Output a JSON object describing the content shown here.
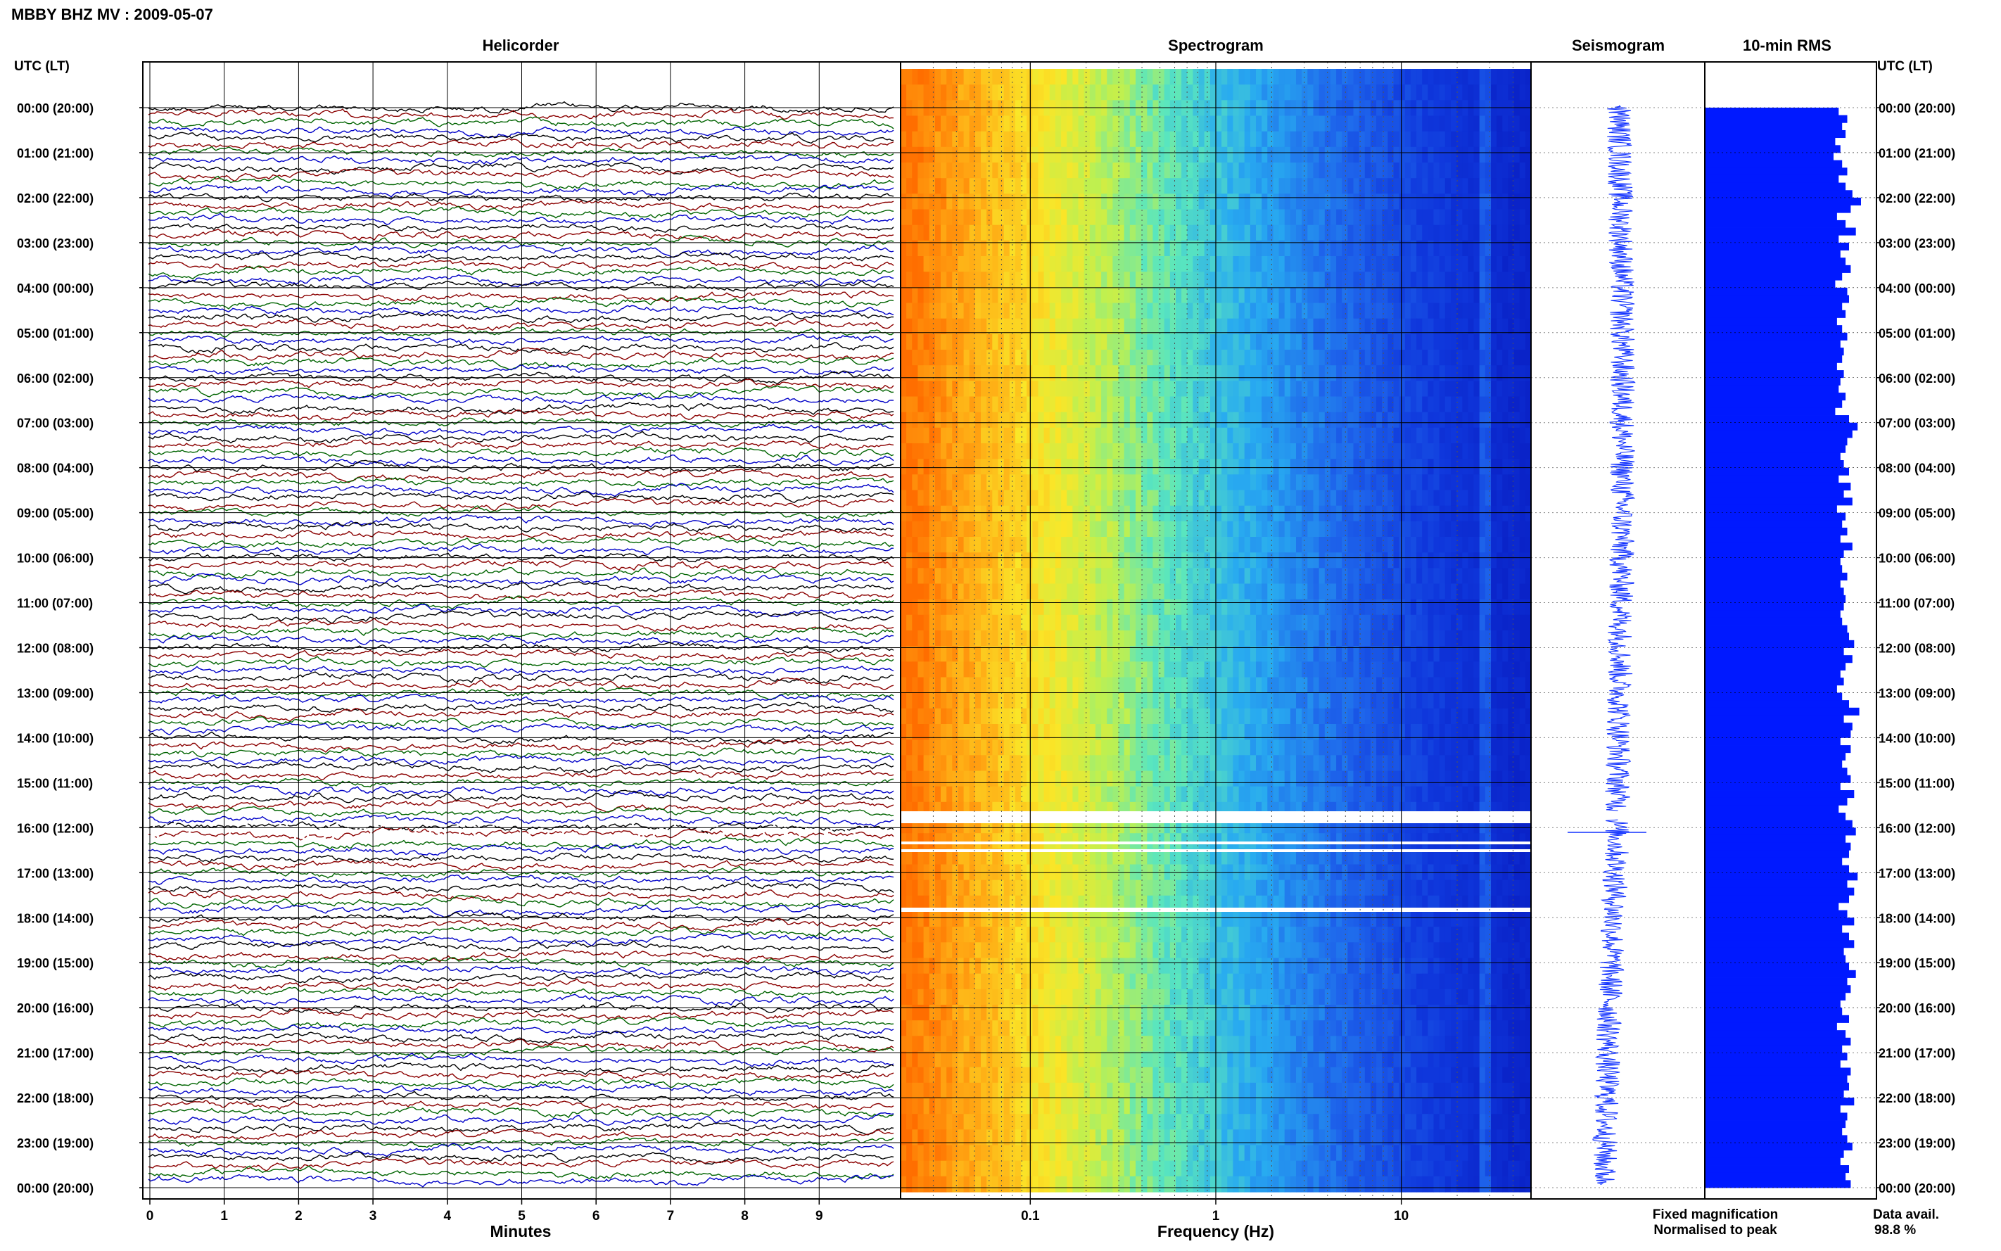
{
  "header": {
    "title": "MBBY BHZ MV : 2009-05-07"
  },
  "panels": {
    "helicorder": "Helicorder",
    "spectrogram": "Spectrogram",
    "seismogram": "Seismogram",
    "rms": "10-min RMS"
  },
  "axes": {
    "left_label": "UTC (LT)",
    "right_label": "UTC (LT)",
    "minutes_label": "Minutes",
    "frequency_label": "Frequency (Hz)"
  },
  "legend": {
    "fixed": "Fixed magnification",
    "normalised": "Normalised to peak",
    "fixed_color": "#0000ff",
    "normalised_color": "#ff0000"
  },
  "data_avail": {
    "label": "Data avail.",
    "value": "98.8 %"
  },
  "colors": {
    "trace_cycle": [
      "#000000",
      "#8b0000",
      "#006400",
      "#0000c8"
    ],
    "rms_bar": "#0019ff",
    "seismogram": "#1030ff"
  },
  "chart_data": [
    {
      "type": "line",
      "title": "Helicorder",
      "xlabel": "Minutes",
      "ylabel": "UTC (LT)",
      "xlim": [
        0,
        10
      ],
      "x_ticks": [
        "0",
        "1",
        "2",
        "3",
        "4",
        "5",
        "6",
        "7",
        "8",
        "9"
      ],
      "hour_labels": [
        "00:00 (20:00)",
        "01:00 (21:00)",
        "02:00 (22:00)",
        "03:00 (23:00)",
        "04:00 (00:00)",
        "05:00 (01:00)",
        "06:00 (02:00)",
        "07:00 (03:00)",
        "08:00 (04:00)",
        "09:00 (05:00)",
        "10:00 (06:00)",
        "11:00 (07:00)",
        "12:00 (08:00)",
        "13:00 (09:00)",
        "14:00 (10:00)",
        "15:00 (11:00)",
        "16:00 (12:00)",
        "17:00 (13:00)",
        "18:00 (14:00)",
        "19:00 (15:00)",
        "20:00 (16:00)",
        "21:00 (17:00)",
        "22:00 (18:00)",
        "23:00 (19:00)",
        "00:00 (20:00)"
      ],
      "traces_per_hour": 6,
      "gap_hour": 16,
      "grid": true
    },
    {
      "type": "heatmap",
      "title": "Spectrogram",
      "xlabel": "Frequency (Hz)",
      "x_scale": "log",
      "xlim": [
        0.02,
        50
      ],
      "x_ticks": [
        "0.1",
        "1",
        "10"
      ],
      "gap_hours": [
        16,
        17,
        18
      ]
    },
    {
      "type": "line",
      "title": "Seismogram"
    },
    {
      "type": "bar",
      "title": "10-min RMS",
      "orientation": "horizontal",
      "values": [
        0.78,
        0.83,
        0.8,
        0.82,
        0.76,
        0.79,
        0.75,
        0.8,
        0.83,
        0.78,
        0.82,
        0.86,
        0.91,
        0.85,
        0.77,
        0.82,
        0.88,
        0.78,
        0.84,
        0.79,
        0.82,
        0.85,
        0.8,
        0.76,
        0.83,
        0.84,
        0.8,
        0.82,
        0.77,
        0.8,
        0.83,
        0.79,
        0.81,
        0.8,
        0.77,
        0.81,
        0.79,
        0.78,
        0.82,
        0.8,
        0.76,
        0.84,
        0.89,
        0.86,
        0.83,
        0.82,
        0.79,
        0.81,
        0.84,
        0.78,
        0.85,
        0.81,
        0.86,
        0.77,
        0.82,
        0.8,
        0.83,
        0.79,
        0.86,
        0.81,
        0.79,
        0.8,
        0.83,
        0.79,
        0.81,
        0.82,
        0.81,
        0.79,
        0.8,
        0.83,
        0.84,
        0.87,
        0.81,
        0.86,
        0.82,
        0.79,
        0.81,
        0.77,
        0.8,
        0.84,
        0.9,
        0.81,
        0.86,
        0.85,
        0.79,
        0.85,
        0.82,
        0.8,
        0.83,
        0.85,
        0.79,
        0.87,
        0.83,
        0.78,
        0.82,
        0.86,
        0.88,
        0.82,
        0.85,
        0.84,
        0.8,
        0.84,
        0.89,
        0.83,
        0.87,
        0.84,
        0.78,
        0.83,
        0.87,
        0.8,
        0.84,
        0.87,
        0.81,
        0.82,
        0.84,
        0.88,
        0.83,
        0.85,
        0.82,
        0.79,
        0.8,
        0.84,
        0.77,
        0.82,
        0.85,
        0.8,
        0.83,
        0.79,
        0.85,
        0.83,
        0.84,
        0.81,
        0.87,
        0.79,
        0.83,
        0.82,
        0.8,
        0.83,
        0.86,
        0.81,
        0.79,
        0.84,
        0.82,
        0.85
      ],
      "grid": true
    }
  ]
}
